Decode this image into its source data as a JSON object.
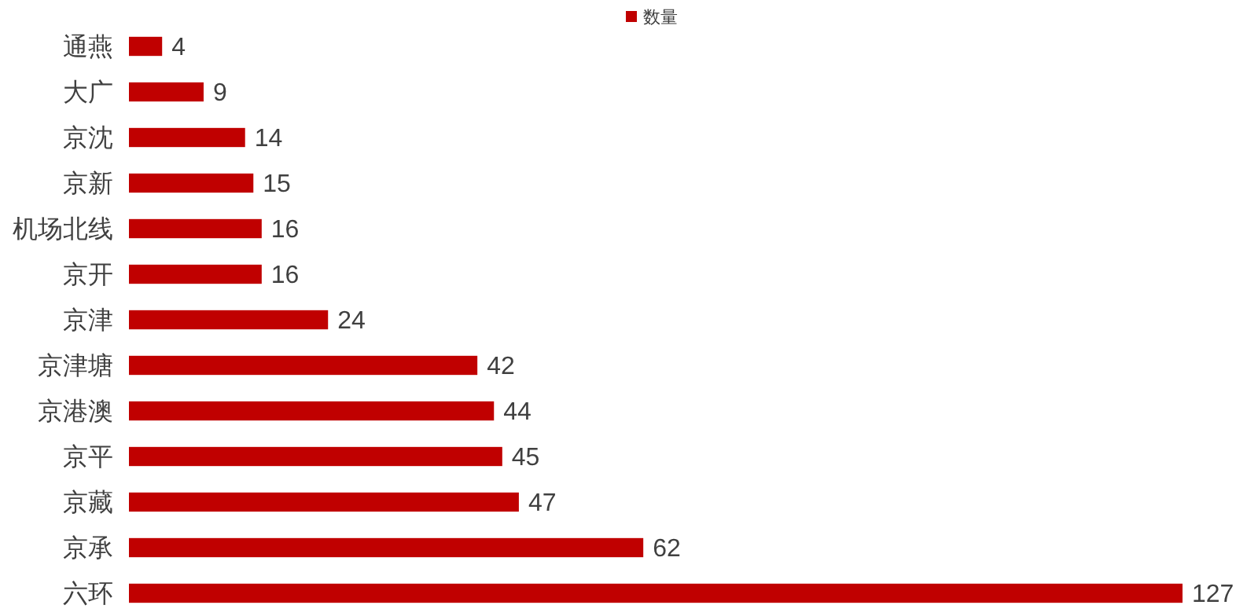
{
  "chart_data": {
    "type": "bar",
    "orientation": "horizontal",
    "categories": [
      "通燕",
      "大广",
      "京沈",
      "京新",
      "机场北线",
      "京开",
      "京津",
      "京津塘",
      "京港澳",
      "京平",
      "京藏",
      "京承",
      "六环"
    ],
    "series": [
      {
        "name": "数量",
        "color": "#c00000",
        "values": [
          4,
          9,
          14,
          15,
          16,
          16,
          24,
          42,
          44,
          45,
          47,
          62,
          127
        ]
      }
    ],
    "data_labels": true,
    "legend": "top",
    "grid": false
  }
}
